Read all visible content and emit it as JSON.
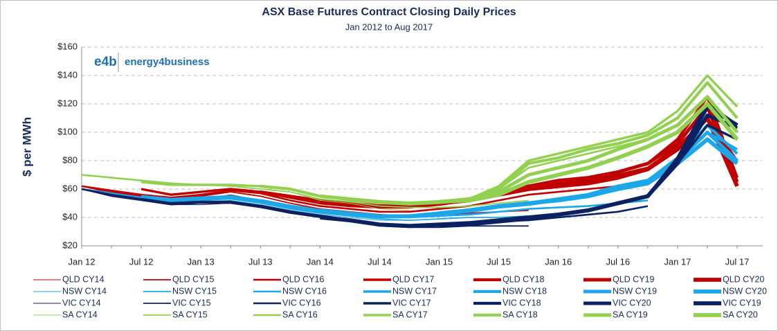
{
  "chart_data": {
    "type": "line",
    "title": "ASX Base Futures Contract Closing Daily Prices",
    "subtitle": "Jan 2012 to Aug 2017",
    "y_label": "$ per MWh",
    "logo": "e4b",
    "logo_text": "energy4business",
    "categories": [
      "Jan 12",
      null,
      "Jul 12",
      null,
      "Jan 13",
      null,
      "Jul 13",
      null,
      "Jan 14",
      null,
      "Jul 14",
      null,
      "Jan 15",
      null,
      "Jul 15",
      null,
      "Jan 16",
      null,
      "Jul 16",
      null,
      "Jan 17",
      null,
      "Jul 17"
    ],
    "ylim": [
      20,
      160
    ],
    "yticks": [
      {
        "value": 20,
        "label": "$20"
      },
      {
        "value": 40,
        "label": "$40"
      },
      {
        "value": 60,
        "label": "$60"
      },
      {
        "value": 80,
        "label": "$80"
      },
      {
        "value": 100,
        "label": "$100"
      },
      {
        "value": 120,
        "label": "$120"
      },
      {
        "value": 140,
        "label": "$140"
      },
      {
        "value": 160,
        "label": "$160"
      }
    ],
    "grid": true,
    "legend": "bottom",
    "series": [
      {
        "name": "QLD CY14",
        "color": "#c00000",
        "width": 1,
        "values": [
          62,
          57,
          54,
          52,
          53,
          56,
          52,
          47,
          44,
          42,
          40,
          40,
          null,
          null,
          null,
          null,
          null,
          null,
          null,
          null,
          null,
          null,
          null
        ]
      },
      {
        "name": "QLD CY15",
        "color": "#c00000",
        "width": 1.8,
        "values": [
          62,
          58,
          55,
          53,
          55,
          58,
          55,
          50,
          46,
          44,
          42,
          41,
          42,
          43,
          44,
          45,
          null,
          null,
          null,
          null,
          null,
          null,
          null
        ]
      },
      {
        "name": "QLD CY16",
        "color": "#c00000",
        "width": 2.6,
        "values": [
          62,
          59,
          56,
          54,
          56,
          59,
          57,
          52,
          48,
          46,
          44,
          44,
          46,
          48,
          52,
          56,
          58,
          60,
          62,
          65,
          null,
          null,
          null
        ]
      },
      {
        "name": "QLD CY17",
        "color": "#c00000",
        "width": 3.4,
        "values": [
          null,
          null,
          60,
          56,
          58,
          60,
          58,
          54,
          50,
          48,
          47,
          47,
          49,
          52,
          56,
          60,
          64,
          66,
          70,
          75,
          90,
          110,
          80
        ]
      },
      {
        "name": "QLD CY18",
        "color": "#c00000",
        "width": 4.2,
        "values": [
          null,
          null,
          null,
          null,
          null,
          null,
          58,
          55,
          52,
          50,
          48,
          48,
          50,
          53,
          57,
          62,
          66,
          68,
          72,
          78,
          95,
          125,
          68
        ]
      },
      {
        "name": "QLD CY19",
        "color": "#c00000",
        "width": 5,
        "values": [
          null,
          null,
          null,
          null,
          null,
          null,
          null,
          null,
          52,
          50,
          48,
          48,
          50,
          53,
          57,
          62,
          66,
          68,
          72,
          78,
          92,
          118,
          65
        ]
      },
      {
        "name": "QLD CY20",
        "color": "#c00000",
        "width": 5.8,
        "values": [
          null,
          null,
          null,
          null,
          null,
          null,
          null,
          null,
          null,
          null,
          null,
          null,
          50,
          52,
          56,
          60,
          62,
          64,
          68,
          74,
          88,
          110,
          62
        ]
      },
      {
        "name": "NSW CY14",
        "color": "#1ca7e8",
        "width": 1,
        "values": [
          60,
          56,
          53,
          50,
          51,
          52,
          49,
          45,
          42,
          40,
          38,
          38,
          null,
          null,
          null,
          null,
          null,
          null,
          null,
          null,
          null,
          null,
          null
        ]
      },
      {
        "name": "NSW CY15",
        "color": "#1ca7e8",
        "width": 1.8,
        "values": [
          60,
          56,
          53,
          51,
          52,
          53,
          50,
          46,
          43,
          41,
          39,
          38,
          39,
          40,
          40,
          41,
          null,
          null,
          null,
          null,
          null,
          null,
          null
        ]
      },
      {
        "name": "NSW CY16",
        "color": "#1ca7e8",
        "width": 2.6,
        "values": [
          60,
          57,
          54,
          52,
          53,
          54,
          51,
          47,
          44,
          42,
          40,
          40,
          41,
          42,
          44,
          46,
          47,
          48,
          50,
          52,
          null,
          null,
          null
        ]
      },
      {
        "name": "NSW CY17",
        "color": "#1ca7e8",
        "width": 3.4,
        "values": [
          null,
          null,
          55,
          53,
          54,
          55,
          52,
          48,
          45,
          43,
          41,
          41,
          42,
          44,
          47,
          49,
          52,
          55,
          60,
          64,
          80,
          100,
          88
        ]
      },
      {
        "name": "NSW CY18",
        "color": "#1ca7e8",
        "width": 4.2,
        "values": [
          null,
          null,
          null,
          null,
          null,
          null,
          52,
          48,
          45,
          43,
          41,
          41,
          43,
          45,
          48,
          50,
          53,
          56,
          62,
          66,
          82,
          105,
          85
        ]
      },
      {
        "name": "NSW CY19",
        "color": "#1ca7e8",
        "width": 5,
        "values": [
          null,
          null,
          null,
          null,
          null,
          null,
          null,
          null,
          45,
          43,
          41,
          41,
          43,
          45,
          48,
          50,
          53,
          56,
          62,
          66,
          80,
          100,
          80
        ]
      },
      {
        "name": "NSW CY20",
        "color": "#1ca7e8",
        "width": 5.8,
        "values": [
          null,
          null,
          null,
          null,
          null,
          null,
          null,
          null,
          null,
          null,
          null,
          null,
          43,
          45,
          48,
          50,
          52,
          55,
          60,
          64,
          78,
          95,
          78
        ]
      },
      {
        "name": "VIC CY14",
        "color": "#0c2160",
        "width": 1,
        "values": [
          60,
          55,
          52,
          49,
          49,
          50,
          47,
          43,
          40,
          37,
          34,
          34,
          null,
          null,
          null,
          null,
          null,
          null,
          null,
          null,
          null,
          null,
          null
        ]
      },
      {
        "name": "VIC CY15",
        "color": "#0c2160",
        "width": 1.8,
        "values": [
          60,
          55,
          52,
          49,
          50,
          50,
          47,
          43,
          40,
          37,
          34,
          33,
          33,
          34,
          34,
          34,
          null,
          null,
          null,
          null,
          null,
          null,
          null
        ]
      },
      {
        "name": "VIC CY16",
        "color": "#0c2160",
        "width": 2.6,
        "values": [
          60,
          56,
          53,
          50,
          51,
          51,
          48,
          44,
          41,
          38,
          35,
          34,
          35,
          36,
          37,
          38,
          40,
          42,
          44,
          48,
          null,
          null,
          null
        ]
      },
      {
        "name": "VIC CY17",
        "color": "#0c2160",
        "width": 3.4,
        "values": [
          null,
          null,
          53,
          50,
          51,
          51,
          48,
          44,
          41,
          38,
          35,
          34,
          35,
          36,
          38,
          40,
          42,
          45,
          50,
          55,
          78,
          105,
          95
        ]
      },
      {
        "name": "VIC CY18",
        "color": "#0c2160",
        "width": 4.2,
        "values": [
          null,
          null,
          null,
          null,
          null,
          null,
          48,
          44,
          41,
          38,
          35,
          34,
          35,
          36,
          38,
          40,
          42,
          45,
          50,
          55,
          82,
          120,
          105
        ]
      },
      {
        "name": "VIC CY20",
        "color": "#0c2160",
        "width": 5,
        "values": [
          null,
          null,
          null,
          null,
          null,
          null,
          null,
          null,
          null,
          null,
          null,
          null,
          34,
          35,
          37,
          39,
          42,
          45,
          50,
          55,
          78,
          112,
          103
        ]
      },
      {
        "name": "VIC CY19",
        "color": "#0c2160",
        "width": 5.8,
        "values": [
          null,
          null,
          null,
          null,
          null,
          null,
          null,
          null,
          40,
          38,
          35,
          34,
          35,
          36,
          38,
          40,
          42,
          45,
          50,
          55,
          80,
          118,
          105
        ]
      },
      {
        "name": "SA CY14",
        "color": "#92d050",
        "width": 1,
        "values": [
          70,
          68,
          66,
          64,
          63,
          62,
          60,
          58,
          52,
          50,
          46,
          45,
          null,
          null,
          null,
          null,
          null,
          null,
          null,
          null,
          null,
          null,
          null
        ]
      },
      {
        "name": "SA CY15",
        "color": "#92d050",
        "width": 1.8,
        "values": [
          70,
          68,
          66,
          64,
          63,
          62,
          60,
          58,
          53,
          51,
          48,
          47,
          47,
          48,
          50,
          52,
          null,
          null,
          null,
          null,
          null,
          null,
          null
        ]
      },
      {
        "name": "SA CY16",
        "color": "#92d050",
        "width": 2.6,
        "values": [
          70,
          68,
          66,
          64,
          63,
          63,
          62,
          60,
          55,
          52,
          50,
          49,
          50,
          52,
          60,
          75,
          80,
          85,
          90,
          95,
          null,
          null,
          null
        ]
      },
      {
        "name": "SA CY17",
        "color": "#92d050",
        "width": 3.4,
        "values": [
          null,
          null,
          65,
          63,
          63,
          63,
          62,
          60,
          55,
          53,
          51,
          50,
          51,
          53,
          62,
          80,
          85,
          90,
          95,
          100,
          115,
          140,
          118
        ]
      },
      {
        "name": "SA CY18",
        "color": "#92d050",
        "width": 4.2,
        "values": [
          null,
          null,
          null,
          null,
          null,
          null,
          62,
          60,
          55,
          53,
          51,
          50,
          51,
          53,
          60,
          78,
          82,
          88,
          92,
          98,
          110,
          135,
          110
        ]
      },
      {
        "name": "SA CY19",
        "color": "#92d050",
        "width": 5,
        "values": [
          null,
          null,
          null,
          null,
          null,
          null,
          null,
          null,
          55,
          53,
          51,
          50,
          51,
          53,
          58,
          70,
          75,
          80,
          88,
          95,
          105,
          125,
          100
        ]
      },
      {
        "name": "SA CY20",
        "color": "#92d050",
        "width": 5.8,
        "values": [
          null,
          null,
          null,
          null,
          null,
          null,
          null,
          null,
          null,
          null,
          null,
          null,
          51,
          52,
          56,
          65,
          70,
          75,
          82,
          90,
          100,
          120,
          95
        ]
      }
    ]
  }
}
